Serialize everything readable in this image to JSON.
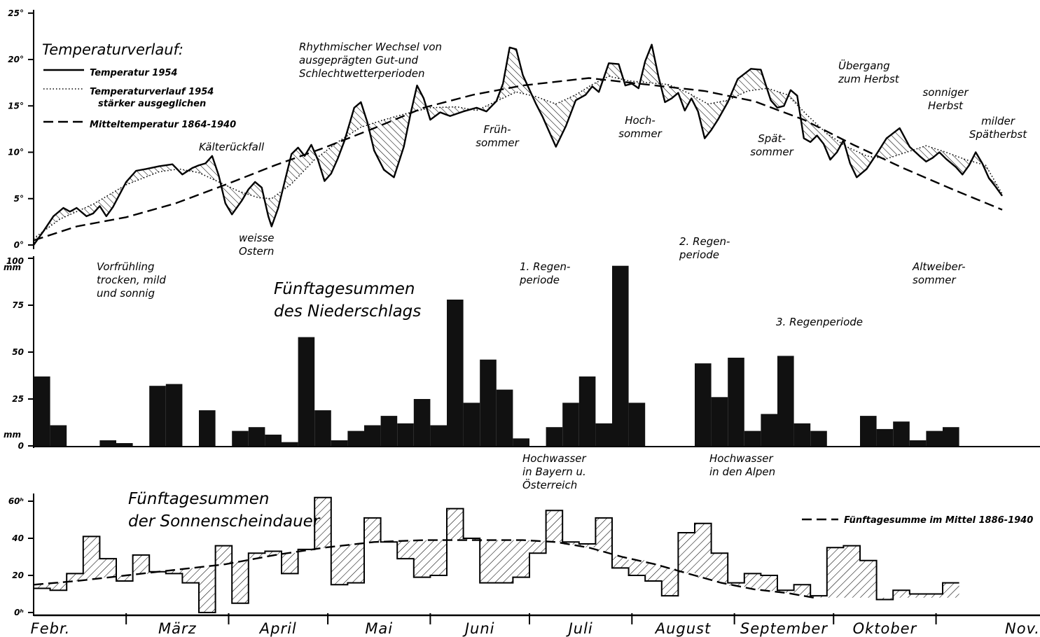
{
  "chart_data": [
    {
      "type": "line",
      "legend_title": "Temperaturverlauf:",
      "legend_placement": "top-left",
      "ylim": [
        0,
        25
      ],
      "yticks": [
        "0°",
        "5°",
        "10°",
        "15°",
        "20°",
        "25°"
      ],
      "x_unit": "day of year",
      "x_range": [
        32,
        337
      ],
      "series": [
        {
          "name": "Temperatur 1954",
          "style": "solid",
          "points": [
            [
              32,
              0
            ],
            [
              35,
              1.5
            ],
            [
              38,
              3.1
            ],
            [
              41,
              4
            ],
            [
              43,
              3.6
            ],
            [
              45,
              4
            ],
            [
              48,
              3.1
            ],
            [
              50,
              3.4
            ],
            [
              52,
              4.2
            ],
            [
              54,
              3.1
            ],
            [
              56,
              4.1
            ],
            [
              60,
              6.8
            ],
            [
              63,
              8
            ],
            [
              66,
              8.2
            ],
            [
              70,
              8.5
            ],
            [
              74,
              8.7
            ],
            [
              77,
              7.6
            ],
            [
              80,
              8.3
            ],
            [
              82,
              8.6
            ],
            [
              84,
              8.8
            ],
            [
              86,
              9.6
            ],
            [
              88,
              7.5
            ],
            [
              90,
              4.5
            ],
            [
              92,
              3.3
            ],
            [
              95,
              4.8
            ],
            [
              97,
              6
            ],
            [
              99,
              6.8
            ],
            [
              101,
              6.2
            ],
            [
              103,
              3.1
            ],
            [
              104,
              2
            ],
            [
              106,
              4
            ],
            [
              108,
              6.9
            ],
            [
              110,
              9.8
            ],
            [
              112,
              10.5
            ],
            [
              114,
              9.6
            ],
            [
              116,
              10.8
            ],
            [
              118,
              9.2
            ],
            [
              120,
              6.9
            ],
            [
              122,
              7.7
            ],
            [
              124,
              9.3
            ],
            [
              126,
              11.2
            ],
            [
              129,
              14.8
            ],
            [
              131,
              15.4
            ],
            [
              133,
              13.2
            ],
            [
              135,
              10.2
            ],
            [
              138,
              8.1
            ],
            [
              141,
              7.3
            ],
            [
              144,
              10.6
            ],
            [
              146,
              14.1
            ],
            [
              148,
              17.2
            ],
            [
              150,
              15.8
            ],
            [
              152,
              13.5
            ],
            [
              155,
              14.3
            ],
            [
              158,
              13.9
            ],
            [
              162,
              14.4
            ],
            [
              166,
              14.8
            ],
            [
              169,
              14.4
            ],
            [
              172,
              15.5
            ],
            [
              174,
              17.4
            ],
            [
              176,
              21.3
            ],
            [
              178,
              21.1
            ],
            [
              180,
              18.3
            ],
            [
              184,
              15.2
            ],
            [
              186,
              13.8
            ],
            [
              188,
              12.2
            ],
            [
              190,
              10.6
            ],
            [
              193,
              12.8
            ],
            [
              196,
              15.6
            ],
            [
              199,
              16.2
            ],
            [
              201,
              17.1
            ],
            [
              203,
              16.5
            ],
            [
              206,
              19.6
            ],
            [
              209,
              19.5
            ],
            [
              211,
              17.2
            ],
            [
              213,
              17.4
            ],
            [
              215,
              16.9
            ],
            [
              217,
              19.8
            ],
            [
              219,
              21.6
            ],
            [
              221,
              18.2
            ],
            [
              223,
              15.4
            ],
            [
              225,
              15.8
            ],
            [
              227,
              16.4
            ],
            [
              229,
              14.5
            ],
            [
              231,
              15.8
            ],
            [
              233,
              14.4
            ],
            [
              235,
              11.5
            ],
            [
              237,
              12.4
            ],
            [
              239,
              13.5
            ],
            [
              242,
              15.4
            ],
            [
              245,
              17.9
            ],
            [
              249,
              19
            ],
            [
              252,
              18.9
            ],
            [
              255,
              15.6
            ],
            [
              257,
              14.8
            ],
            [
              259,
              15
            ],
            [
              261,
              16.7
            ],
            [
              263,
              16.1
            ],
            [
              265,
              11.5
            ],
            [
              267,
              11.1
            ],
            [
              269,
              11.8
            ],
            [
              271,
              10.9
            ],
            [
              273,
              9.2
            ],
            [
              275,
              10
            ],
            [
              277,
              11.3
            ],
            [
              279,
              8.8
            ],
            [
              281,
              7.3
            ],
            [
              284,
              8.2
            ],
            [
              287,
              9.8
            ],
            [
              290,
              11.5
            ],
            [
              294,
              12.6
            ],
            [
              297,
              10.6
            ],
            [
              300,
              9.6
            ],
            [
              302,
              9
            ],
            [
              304,
              9.4
            ],
            [
              306,
              10
            ],
            [
              308,
              9.3
            ],
            [
              311,
              8.4
            ],
            [
              313,
              7.6
            ],
            [
              315,
              8.6
            ],
            [
              317,
              10
            ],
            [
              319,
              8.8
            ],
            [
              321,
              7.2
            ],
            [
              323,
              6.3
            ],
            [
              325,
              5.3
            ]
          ]
        },
        {
          "name": "Temperaturverlauf 1954 stärker ausgeglichen",
          "style": "dotted",
          "points": [
            [
              32,
              0.7
            ],
            [
              40,
              2.8
            ],
            [
              50,
              4.4
            ],
            [
              60,
              6.5
            ],
            [
              70,
              7.9
            ],
            [
              76,
              8.2
            ],
            [
              82,
              7.8
            ],
            [
              88,
              6.8
            ],
            [
              94,
              5.8
            ],
            [
              100,
              5.1
            ],
            [
              104,
              5
            ],
            [
              110,
              6.6
            ],
            [
              117,
              9.2
            ],
            [
              124,
              11.1
            ],
            [
              131,
              12.7
            ],
            [
              138,
              13.5
            ],
            [
              145,
              14.2
            ],
            [
              152,
              14.8
            ],
            [
              160,
              14.9
            ],
            [
              166,
              14.5
            ],
            [
              172,
              15.5
            ],
            [
              178,
              16.5
            ],
            [
              184,
              16
            ],
            [
              190,
              15.2
            ],
            [
              196,
              16.2
            ],
            [
              201,
              17.3
            ],
            [
              206,
              18.2
            ],
            [
              212,
              17.7
            ],
            [
              218,
              17.5
            ],
            [
              224,
              17.3
            ],
            [
              230,
              16.4
            ],
            [
              236,
              15.2
            ],
            [
              242,
              15.6
            ],
            [
              248,
              16.6
            ],
            [
              254,
              16.9
            ],
            [
              260,
              16.2
            ],
            [
              266,
              14
            ],
            [
              272,
              12
            ],
            [
              278,
              10.6
            ],
            [
              284,
              9.6
            ],
            [
              290,
              9.3
            ],
            [
              296,
              10
            ],
            [
              302,
              10.7
            ],
            [
              308,
              10
            ],
            [
              314,
              9.2
            ],
            [
              320,
              8.6
            ],
            [
              325,
              5.5
            ]
          ]
        },
        {
          "name": "Mitteltemperatur 1864-1940",
          "style": "dashed",
          "points": [
            [
              32,
              0.5
            ],
            [
              45,
              2
            ],
            [
              60,
              3
            ],
            [
              75,
              4.5
            ],
            [
              90,
              6.5
            ],
            [
              105,
              8.6
            ],
            [
              120,
              10.5
            ],
            [
              135,
              12.6
            ],
            [
              150,
              14.8
            ],
            [
              165,
              16.2
            ],
            [
              180,
              17.2
            ],
            [
              190,
              17.6
            ],
            [
              200,
              18
            ],
            [
              210,
              17.6
            ],
            [
              220,
              17.2
            ],
            [
              235,
              16.6
            ],
            [
              250,
              15.5
            ],
            [
              265,
              13.5
            ],
            [
              280,
              10.8
            ],
            [
              295,
              8.3
            ],
            [
              310,
              6
            ],
            [
              325,
              3.8
            ]
          ]
        }
      ],
      "annotations": [
        {
          "key": "kaelte",
          "text": [
            "Kälterückfall"
          ]
        },
        {
          "key": "ostern",
          "text": [
            "weisse",
            "Ostern"
          ]
        },
        {
          "key": "rhythm",
          "text": [
            "Rhythmischer Wechsel von",
            "ausgeprägten Gut-und",
            "Schlechtwetterperioden"
          ]
        },
        {
          "key": "frueh",
          "text": [
            "Früh-",
            "sommer"
          ]
        },
        {
          "key": "hoch",
          "text": [
            "Hoch-",
            "sommer"
          ]
        },
        {
          "key": "spaet",
          "text": [
            "Spät-",
            "sommer"
          ]
        },
        {
          "key": "uebergang",
          "text": [
            "Übergang",
            "zum Herbst"
          ]
        },
        {
          "key": "sonnig",
          "text": [
            "sonniger",
            "Herbst"
          ]
        },
        {
          "key": "mild",
          "text": [
            "milder",
            "Spätherbst"
          ]
        }
      ]
    },
    {
      "type": "bar",
      "title": [
        "Fünftagesummen",
        "des Niederschlags"
      ],
      "ylim": [
        0,
        100
      ],
      "yticks": [
        "0",
        "25",
        "50",
        "75",
        "100"
      ],
      "unit_label": "mm",
      "start_day": 32,
      "period_days": 5,
      "values": [
        37,
        11,
        0,
        0,
        3,
        1.5,
        0,
        32,
        33,
        0,
        19,
        0,
        8,
        10,
        6,
        2,
        58,
        19,
        3,
        8,
        11,
        16,
        12,
        25,
        11,
        78,
        23,
        46,
        30,
        4,
        0,
        10,
        23,
        37,
        12,
        96,
        23,
        0,
        0,
        0,
        44,
        26,
        47,
        8,
        17,
        48,
        12,
        8,
        0,
        0,
        16,
        9,
        13,
        3,
        8,
        10
      ],
      "annotations": [
        {
          "key": "vorfr",
          "text": [
            "Vorfrühling",
            "trocken, mild",
            "und sonnig"
          ]
        },
        {
          "key": "regen1",
          "text": [
            "1. Regen-",
            "periode"
          ]
        },
        {
          "key": "regen2",
          "text": [
            "2. Regen-",
            "periode"
          ]
        },
        {
          "key": "regen3",
          "text": [
            "3. Regenperiode"
          ]
        },
        {
          "key": "altw",
          "text": [
            "Altweiber-",
            "sommer"
          ]
        },
        {
          "key": "hw_bayern",
          "text": [
            "Hochwasser",
            "in Bayern u.",
            "Österreich"
          ]
        },
        {
          "key": "hw_alpen",
          "text": [
            "Hochwasser",
            "in den Alpen"
          ]
        }
      ]
    },
    {
      "type": "bar",
      "title": [
        "Fünftagesummen",
        "der Sonnenscheindauer"
      ],
      "ylim": [
        0,
        60
      ],
      "yticks": [
        "0ʰ",
        "20",
        "40",
        "60ʰ"
      ],
      "start_day": 32,
      "period_days": 5,
      "values": [
        13,
        12,
        21,
        41,
        29,
        17,
        31,
        22,
        21,
        16,
        0,
        36,
        5,
        32,
        33,
        21,
        34,
        62,
        15,
        16,
        51,
        38,
        29,
        19,
        20,
        56,
        40,
        16,
        16,
        19,
        32,
        55,
        38,
        37,
        51,
        24,
        20,
        17,
        9,
        43,
        48,
        32,
        16,
        21,
        20,
        12,
        15,
        9,
        35,
        36,
        28,
        7,
        12,
        10,
        10,
        16
      ],
      "mean_name": "Fünftagesumme im Mittel 1886-1940",
      "mean": [
        [
          32,
          15
        ],
        [
          45,
          17
        ],
        [
          60,
          20
        ],
        [
          75,
          23
        ],
        [
          90,
          26
        ],
        [
          105,
          31
        ],
        [
          120,
          35
        ],
        [
          135,
          38
        ],
        [
          150,
          39
        ],
        [
          165,
          39
        ],
        [
          180,
          39
        ],
        [
          190,
          38
        ],
        [
          200,
          35
        ],
        [
          210,
          30
        ],
        [
          220,
          26
        ],
        [
          230,
          21
        ],
        [
          240,
          16
        ],
        [
          250,
          12.5
        ],
        [
          260,
          10.5
        ],
        [
          268,
          8
        ]
      ]
    }
  ],
  "x_axis": {
    "months": [
      {
        "label": "Febr.",
        "day": 32
      },
      {
        "label": "März",
        "day": 60
      },
      {
        "label": "April",
        "day": 91
      },
      {
        "label": "Mai",
        "day": 121
      },
      {
        "label": "Juni",
        "day": 152
      },
      {
        "label": "Juli",
        "day": 182
      },
      {
        "label": "August",
        "day": 213
      },
      {
        "label": "September",
        "day": 244
      },
      {
        "label": "Oktober",
        "day": 274
      },
      {
        "label": "Nov.",
        "day": 305
      }
    ]
  },
  "colors": {
    "ink": "#000000",
    "paper": "#ffffff"
  }
}
